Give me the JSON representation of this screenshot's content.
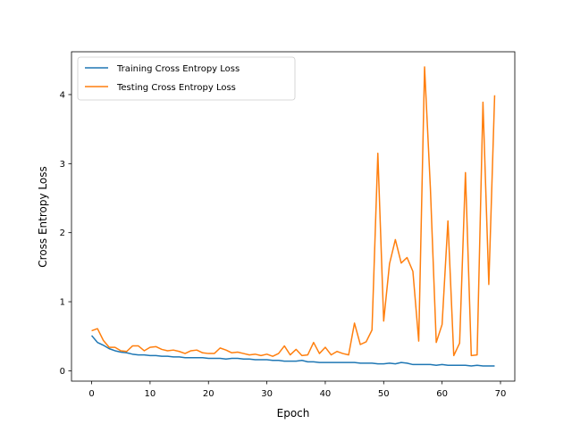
{
  "chart_data": {
    "type": "line",
    "title": "",
    "xlabel": "Epoch",
    "ylabel": "Cross Entropy Loss",
    "xlim": [
      -3.45,
      72.45
    ],
    "ylim": [
      -0.15,
      4.62
    ],
    "x_ticks": [
      0,
      10,
      20,
      30,
      40,
      50,
      60,
      70
    ],
    "y_ticks": [
      0,
      1,
      2,
      3,
      4
    ],
    "grid": false,
    "legend_position": "upper-left",
    "series": [
      {
        "name": "Training Cross Entropy Loss",
        "color": "#1f77b4",
        "values": [
          0.51,
          0.41,
          0.37,
          0.32,
          0.29,
          0.27,
          0.26,
          0.24,
          0.23,
          0.23,
          0.22,
          0.22,
          0.21,
          0.21,
          0.2,
          0.2,
          0.19,
          0.19,
          0.19,
          0.19,
          0.18,
          0.18,
          0.18,
          0.17,
          0.18,
          0.18,
          0.17,
          0.17,
          0.16,
          0.16,
          0.16,
          0.15,
          0.15,
          0.14,
          0.14,
          0.14,
          0.15,
          0.13,
          0.13,
          0.12,
          0.12,
          0.12,
          0.12,
          0.12,
          0.12,
          0.12,
          0.11,
          0.11,
          0.11,
          0.1,
          0.1,
          0.11,
          0.1,
          0.12,
          0.11,
          0.09,
          0.09,
          0.09,
          0.09,
          0.08,
          0.09,
          0.08,
          0.08,
          0.08,
          0.08,
          0.07,
          0.08,
          0.07,
          0.07,
          0.07
        ]
      },
      {
        "name": "Testing Cross Entropy Loss",
        "color": "#ff7f0e",
        "values": [
          0.58,
          0.61,
          0.44,
          0.34,
          0.34,
          0.29,
          0.28,
          0.36,
          0.36,
          0.29,
          0.34,
          0.35,
          0.31,
          0.29,
          0.3,
          0.28,
          0.25,
          0.29,
          0.3,
          0.26,
          0.25,
          0.25,
          0.33,
          0.3,
          0.26,
          0.27,
          0.25,
          0.23,
          0.24,
          0.22,
          0.24,
          0.21,
          0.25,
          0.36,
          0.23,
          0.31,
          0.22,
          0.23,
          0.41,
          0.25,
          0.34,
          0.23,
          0.28,
          0.25,
          0.23,
          0.69,
          0.38,
          0.42,
          0.59,
          3.15,
          0.72,
          1.55,
          1.9,
          1.56,
          1.64,
          1.44,
          0.43,
          4.4,
          2.64,
          0.41,
          0.67,
          2.17,
          0.22,
          0.4,
          2.87,
          0.22,
          0.23,
          3.89,
          1.25,
          3.99
        ]
      }
    ]
  }
}
